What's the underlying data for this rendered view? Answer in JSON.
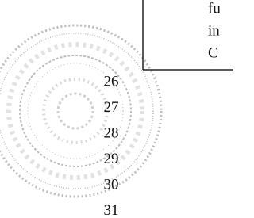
{
  "line_numbers": [
    "26",
    "27",
    "28",
    "29",
    "30",
    "31"
  ],
  "text_fragments": [
    "fu",
    "in",
    "C"
  ]
}
